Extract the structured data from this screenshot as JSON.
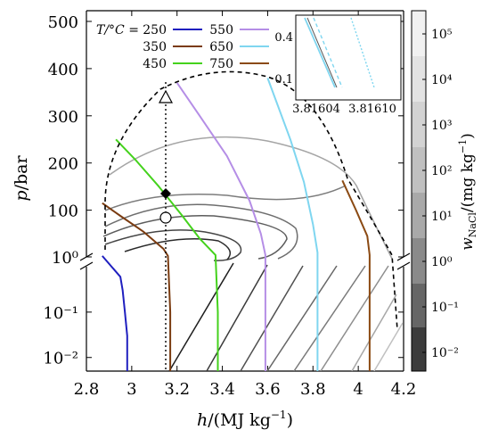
{
  "chart_data": {
    "type": "line",
    "xlabel": "h/(MJ kg⁻¹)",
    "ylabel": "p/bar",
    "colorbar_label": "w_NaCl/(mg kg⁻¹)",
    "x_ticks": [
      "2.8",
      "3",
      "3.2",
      "3.4",
      "3.6",
      "3.8",
      "4",
      "4.2"
    ],
    "y_ticks_upper": [
      "10⁰",
      "100",
      "200",
      "300",
      "400",
      "500"
    ],
    "y_ticks_lower": [
      "10⁻¹",
      "10⁻²"
    ],
    "colorbar_ticks": [
      "10⁵",
      "10⁴",
      "10³",
      "10²",
      "10¹",
      "10⁰",
      "10⁻¹",
      "10⁻²"
    ],
    "legend_title": "T/°C =",
    "legend": [
      {
        "label": "250",
        "color": "#1f1fbf"
      },
      {
        "label": "350",
        "color": "#7a3b10"
      },
      {
        "label": "450",
        "color": "#44d21c"
      },
      {
        "label": "550",
        "color": "#b58ee6"
      },
      {
        "label": "650",
        "color": "#7fd6f0"
      },
      {
        "label": "750",
        "color": "#8b4a13"
      }
    ],
    "inset": {
      "x_ticks": [
        "3.81604",
        "3.81610"
      ],
      "y_ticks": [
        "0.4",
        "0.1"
      ]
    },
    "reference_h": 3.16,
    "markers": [
      {
        "shape": "triangle",
        "h": 3.16,
        "p": 345
      },
      {
        "shape": "diamond",
        "h": 3.16,
        "p": 138
      },
      {
        "shape": "circle",
        "h": 3.16,
        "p": 85
      }
    ],
    "isotherms": [
      {
        "T": 250,
        "h": [
          2.87,
          2.95,
          2.96,
          2.97,
          2.98,
          2.98
        ],
        "p": [
          3,
          0.6,
          0.3,
          0.1,
          0.03,
          0.005
        ]
      },
      {
        "T": 350,
        "h": [
          2.87,
          2.95,
          3.05,
          3.14,
          3.16,
          3.17,
          3.17
        ],
        "p": [
          115,
          88,
          55,
          18,
          3,
          0.1,
          0.005
        ]
      },
      {
        "T": 450,
        "h": [
          2.93,
          3.02,
          3.12,
          3.22,
          3.3,
          3.37,
          3.38,
          3.38
        ],
        "p": [
          250,
          205,
          150,
          90,
          40,
          5,
          0.1,
          0.005
        ]
      },
      {
        "T": 550,
        "h": [
          3.2,
          3.3,
          3.42,
          3.52,
          3.57,
          3.59,
          3.59
        ],
        "p": [
          370,
          300,
          215,
          120,
          50,
          5,
          0.005
        ]
      },
      {
        "T": 650,
        "h": [
          3.6,
          3.7,
          3.76,
          3.8,
          3.82,
          3.82
        ],
        "p": [
          380,
          250,
          160,
          70,
          10,
          0.005
        ]
      },
      {
        "T": 750,
        "h": [
          3.93,
          3.99,
          4.04,
          4.05,
          4.05
        ],
        "p": [
          163,
          100,
          45,
          5,
          0.005
        ]
      }
    ]
  }
}
